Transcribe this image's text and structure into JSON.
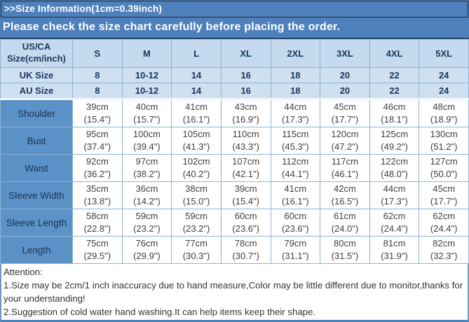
{
  "banner": {
    "title": ">>Size Information(1cm=0.39inch)",
    "subtitle": "Please check the size chart carefully before placing the order."
  },
  "table": {
    "corner_label_line1": "US/CA",
    "corner_label_line2": "Size(cm/inch)",
    "size_columns": [
      "S",
      "M",
      "L",
      "XL",
      "2XL",
      "3XL",
      "4XL",
      "5XL"
    ],
    "conversion_rows": [
      {
        "label": "UK Size",
        "values": [
          "8",
          "10-12",
          "14",
          "16",
          "18",
          "20",
          "22",
          "24"
        ]
      },
      {
        "label": "AU Size",
        "values": [
          "8",
          "10-12",
          "14",
          "16",
          "18",
          "20",
          "22",
          "24"
        ]
      }
    ],
    "measurement_rows": [
      {
        "label": "Shoulder",
        "cells": [
          {
            "cm": "39cm",
            "inch": "(15.4\")"
          },
          {
            "cm": "40cm",
            "inch": "(15.7\")"
          },
          {
            "cm": "41cm",
            "inch": "(16.1\")"
          },
          {
            "cm": "43cm",
            "inch": "(16.9\")"
          },
          {
            "cm": "44cm",
            "inch": "(17.3\")"
          },
          {
            "cm": "45cm",
            "inch": "(17.7\")"
          },
          {
            "cm": "46cm",
            "inch": "(18.1\")"
          },
          {
            "cm": "48cm",
            "inch": "(18.9\")"
          }
        ]
      },
      {
        "label": "Bust",
        "cells": [
          {
            "cm": "95cm",
            "inch": "(37.4\")"
          },
          {
            "cm": "100cm",
            "inch": "(39.4\")"
          },
          {
            "cm": "105cm",
            "inch": "(41.3\")"
          },
          {
            "cm": "110cm",
            "inch": "(43.3\")"
          },
          {
            "cm": "115cm",
            "inch": "(45.3\")"
          },
          {
            "cm": "120cm",
            "inch": "(47.2\")"
          },
          {
            "cm": "125cm",
            "inch": "(49.2\")"
          },
          {
            "cm": "130cm",
            "inch": "(51.2\")"
          }
        ]
      },
      {
        "label": "Waist",
        "cells": [
          {
            "cm": "92cm",
            "inch": "(36.2\")"
          },
          {
            "cm": "97cm",
            "inch": "(38.2\")"
          },
          {
            "cm": "102cm",
            "inch": "(40.2\")"
          },
          {
            "cm": "107cm",
            "inch": "(42.1\")"
          },
          {
            "cm": "112cm",
            "inch": "(44.1\")"
          },
          {
            "cm": "117cm",
            "inch": "(46.1\")"
          },
          {
            "cm": "122cm",
            "inch": "(48.0\")"
          },
          {
            "cm": "127cm",
            "inch": "(50.0\")"
          }
        ]
      },
      {
        "label": "Sleeve Width",
        "cells": [
          {
            "cm": "35cm",
            "inch": "(13.8\")"
          },
          {
            "cm": "36cm",
            "inch": "(14.2\")"
          },
          {
            "cm": "38cm",
            "inch": "(15.0\")"
          },
          {
            "cm": "39cm",
            "inch": "(15.4\")"
          },
          {
            "cm": "41cm",
            "inch": "(16.1\")"
          },
          {
            "cm": "42cm",
            "inch": "(16.5\")"
          },
          {
            "cm": "44cm",
            "inch": "(17.3\")"
          },
          {
            "cm": "45cm",
            "inch": "(17.7\")"
          }
        ]
      },
      {
        "label": "Sleeve Length",
        "cells": [
          {
            "cm": "58cm",
            "inch": "(22.8\")"
          },
          {
            "cm": "59cm",
            "inch": "(23.2\")"
          },
          {
            "cm": "59cm",
            "inch": "(23.2\")"
          },
          {
            "cm": "60cm",
            "inch": "(23.6\")"
          },
          {
            "cm": "60cm",
            "inch": "(23.6\")"
          },
          {
            "cm": "61cm",
            "inch": "(24.0\")"
          },
          {
            "cm": "62cm",
            "inch": "(24.4\")"
          },
          {
            "cm": "62cm",
            "inch": "(24.4\")"
          }
        ]
      },
      {
        "label": "Length",
        "cells": [
          {
            "cm": "75cm",
            "inch": "(29.5\")"
          },
          {
            "cm": "76cm",
            "inch": "(29.9\")"
          },
          {
            "cm": "77cm",
            "inch": "(30.3\")"
          },
          {
            "cm": "78cm",
            "inch": "(30.7\")"
          },
          {
            "cm": "79cm",
            "inch": "(31.1\")"
          },
          {
            "cm": "80cm",
            "inch": "(31.5\")"
          },
          {
            "cm": "81cm",
            "inch": "(31.9\")"
          },
          {
            "cm": "82cm",
            "inch": "(32.3\")"
          }
        ]
      }
    ]
  },
  "attention": {
    "title": "Attention:",
    "notes": [
      "1.Size may be 2cm/1 inch inaccuracy due to hand measure,Color may be little different due to monitor,thanks for your understanding!",
      "2.Suggestion of cold water hand washing.It can help items keep their shape."
    ]
  },
  "colors": {
    "banner_bg": "#4e80bc",
    "header_cell_bg": "#c5daee",
    "conversion_cell_bg": "#cfe0f1",
    "row_label_bg": "#5b92c8",
    "cell_border": "#8db2d6",
    "header_text": "#17375e",
    "cell_text": "#404040",
    "banner_text": "#ffffff"
  }
}
